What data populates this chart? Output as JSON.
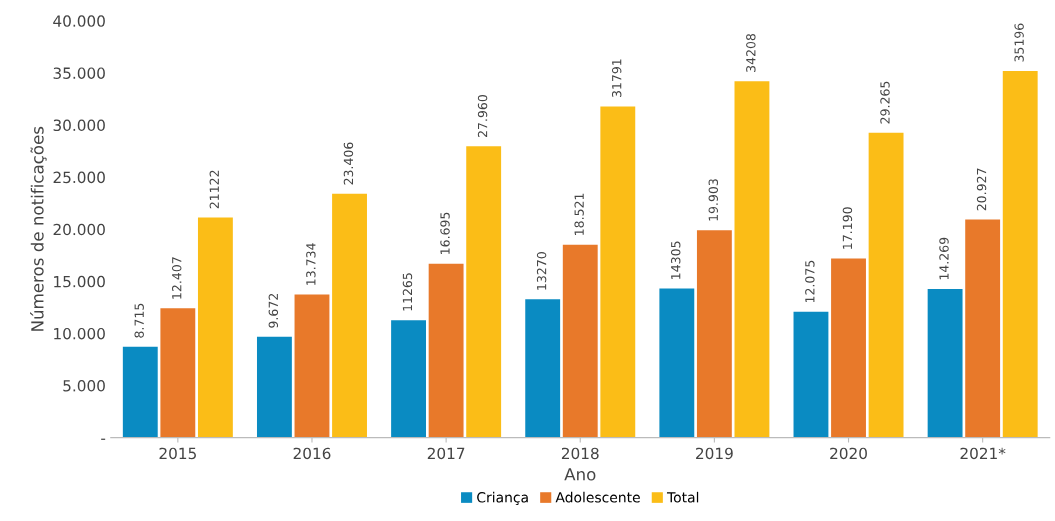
{
  "chart_data": {
    "type": "bar",
    "xlabel": "Ano",
    "ylabel": "Números de notificações",
    "categories": [
      "2015",
      "2016",
      "2017",
      "2018",
      "2019",
      "2020",
      "2021*"
    ],
    "series": [
      {
        "name": "Criança",
        "color": "#0a8bc2",
        "values": [
          8715,
          9672,
          11265,
          13270,
          14305,
          12075,
          14269
        ],
        "value_labels": [
          "8.715",
          "9.672",
          "11265",
          "13270",
          "14305",
          "12.075",
          "14.269"
        ]
      },
      {
        "name": "Adolescente",
        "color": "#e8792a",
        "values": [
          12407,
          13734,
          16695,
          18521,
          19903,
          17190,
          20927
        ],
        "value_labels": [
          "12.407",
          "13.734",
          "16.695",
          "18.521",
          "19.903",
          "17.190",
          "20.927"
        ]
      },
      {
        "name": "Total",
        "color": "#fbbd17",
        "values": [
          21122,
          23406,
          27960,
          31791,
          34208,
          29265,
          35196
        ],
        "value_labels": [
          "21122",
          "23.406",
          "27.960",
          "31791",
          "34208",
          "29.265",
          "35196"
        ]
      }
    ],
    "ylim": [
      0,
      40000
    ],
    "yticks": [
      {
        "value": 0,
        "label": "-"
      },
      {
        "value": 5000,
        "label": "5.000"
      },
      {
        "value": 10000,
        "label": "10.000"
      },
      {
        "value": 15000,
        "label": "15.000"
      },
      {
        "value": 20000,
        "label": "20.000"
      },
      {
        "value": 25000,
        "label": "25.000"
      },
      {
        "value": 30000,
        "label": "30.000"
      },
      {
        "value": 35000,
        "label": "35.000"
      },
      {
        "value": 40000,
        "label": "40.000"
      }
    ],
    "grid": false,
    "legend": "bottom"
  }
}
